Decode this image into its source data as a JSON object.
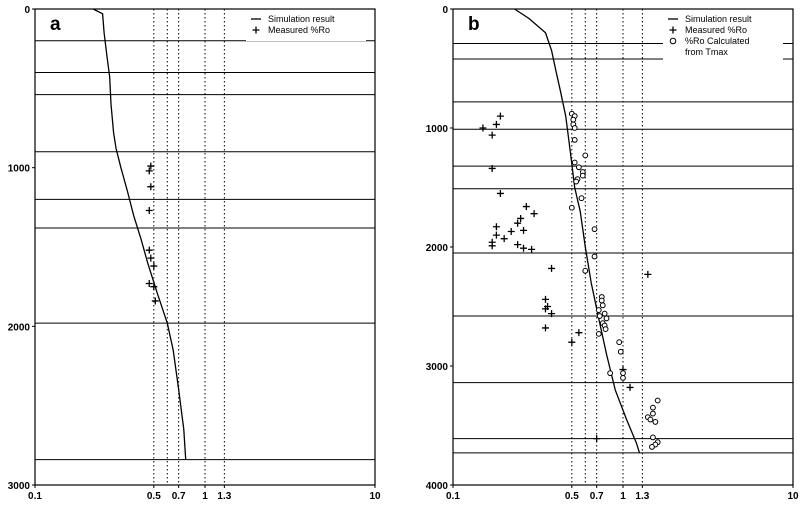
{
  "chart_data": [
    {
      "panel": "a",
      "type": "scatter",
      "xscale": "log",
      "xlim": [
        0.1,
        10
      ],
      "ylim": [
        3000,
        0
      ],
      "x_ticks": [
        "0.1",
        "0.5",
        "0.7",
        "1",
        "1.3",
        "10"
      ],
      "y_ticks": [
        "0",
        "1000",
        "2000",
        "3000"
      ],
      "vlines": [
        0.5,
        0.6,
        0.7,
        1.0,
        1.3
      ],
      "hlines": [
        200,
        400,
        540,
        900,
        1200,
        1380,
        1980,
        2840
      ],
      "legend": {
        "position": "top-right",
        "entries": [
          {
            "symbol": "line",
            "label": "Simulation result"
          },
          {
            "symbol": "plus",
            "label": "Measured %Ro"
          }
        ]
      },
      "series": [
        {
          "name": "Simulation result",
          "kind": "line",
          "points": [
            [
              0.22,
              0
            ],
            [
              0.25,
              30
            ],
            [
              0.255,
              150
            ],
            [
              0.265,
              300
            ],
            [
              0.275,
              430
            ],
            [
              0.28,
              600
            ],
            [
              0.29,
              780
            ],
            [
              0.3,
              880
            ],
            [
              0.32,
              1000
            ],
            [
              0.35,
              1150
            ],
            [
              0.38,
              1300
            ],
            [
              0.42,
              1450
            ],
            [
              0.46,
              1600
            ],
            [
              0.52,
              1780
            ],
            [
              0.6,
              1980
            ],
            [
              0.65,
              2150
            ],
            [
              0.7,
              2400
            ],
            [
              0.75,
              2650
            ],
            [
              0.77,
              2840
            ]
          ]
        },
        {
          "name": "Measured %Ro",
          "kind": "plus",
          "points": [
            [
              0.48,
              990
            ],
            [
              0.47,
              1020
            ],
            [
              0.48,
              1120
            ],
            [
              0.47,
              1270
            ],
            [
              0.47,
              1520
            ],
            [
              0.48,
              1570
            ],
            [
              0.5,
              1620
            ],
            [
              0.47,
              1730
            ],
            [
              0.5,
              1750
            ],
            [
              0.51,
              1840
            ]
          ]
        }
      ]
    },
    {
      "panel": "b",
      "type": "scatter",
      "xscale": "log",
      "xlim": [
        0.1,
        10
      ],
      "ylim": [
        4000,
        0
      ],
      "x_ticks": [
        "0.1",
        "0.5",
        "0.7",
        "1",
        "1.3",
        "10"
      ],
      "y_ticks": [
        "0",
        "1000",
        "2000",
        "3000",
        "4000"
      ],
      "vlines": [
        0.5,
        0.6,
        0.7,
        1.0,
        1.3
      ],
      "hlines": [
        290,
        420,
        780,
        1010,
        1320,
        1510,
        2050,
        2580,
        3140,
        3610,
        3730
      ],
      "legend": {
        "position": "top-right",
        "entries": [
          {
            "symbol": "line",
            "label": "Simulation result"
          },
          {
            "symbol": "plus",
            "label": "Measured %Ro"
          },
          {
            "symbol": "circle",
            "label": "%Ro Calculated"
          },
          {
            "symbol": "none",
            "label": "from Tmax"
          }
        ]
      },
      "series": [
        {
          "name": "Simulation result",
          "kind": "line",
          "points": [
            [
              0.23,
              0
            ],
            [
              0.28,
              80
            ],
            [
              0.35,
              200
            ],
            [
              0.38,
              350
            ],
            [
              0.4,
              500
            ],
            [
              0.43,
              700
            ],
            [
              0.46,
              900
            ],
            [
              0.48,
              1100
            ],
            [
              0.5,
              1300
            ],
            [
              0.52,
              1500
            ],
            [
              0.56,
              1700
            ],
            [
              0.6,
              2000
            ],
            [
              0.65,
              2300
            ],
            [
              0.72,
              2600
            ],
            [
              0.8,
              2900
            ],
            [
              0.9,
              3200
            ],
            [
              1.05,
              3450
            ],
            [
              1.2,
              3650
            ],
            [
              1.25,
              3730
            ]
          ]
        },
        {
          "name": "Measured %Ro",
          "kind": "plus",
          "points": [
            [
              0.19,
              900
            ],
            [
              0.15,
              1000
            ],
            [
              0.18,
              970
            ],
            [
              0.17,
              1060
            ],
            [
              0.17,
              1340
            ],
            [
              0.19,
              1550
            ],
            [
              0.27,
              1660
            ],
            [
              0.3,
              1720
            ],
            [
              0.25,
              1760
            ],
            [
              0.24,
              1800
            ],
            [
              0.26,
              1860
            ],
            [
              0.18,
              1830
            ],
            [
              0.18,
              1900
            ],
            [
              0.22,
              1870
            ],
            [
              0.17,
              1960
            ],
            [
              0.17,
              1990
            ],
            [
              0.2,
              1930
            ],
            [
              0.24,
              1980
            ],
            [
              0.26,
              2010
            ],
            [
              0.29,
              2020
            ],
            [
              0.38,
              2180
            ],
            [
              1.4,
              2230
            ],
            [
              0.35,
              2440
            ],
            [
              0.36,
              2500
            ],
            [
              0.35,
              2520
            ],
            [
              0.38,
              2560
            ],
            [
              0.35,
              2680
            ],
            [
              0.55,
              2720
            ],
            [
              0.5,
              2800
            ],
            [
              1.0,
              3030
            ],
            [
              1.1,
              3180
            ],
            [
              0.7,
              3610
            ]
          ]
        },
        {
          "name": "%Ro Calculated",
          "kind": "circle",
          "points": [
            [
              0.5,
              880
            ],
            [
              0.52,
              900
            ],
            [
              0.51,
              930
            ],
            [
              0.51,
              970
            ],
            [
              0.52,
              1000
            ],
            [
              0.52,
              1100
            ],
            [
              0.6,
              1230
            ],
            [
              0.52,
              1290
            ],
            [
              0.55,
              1330
            ],
            [
              0.58,
              1370
            ],
            [
              0.58,
              1400
            ],
            [
              0.54,
              1430
            ],
            [
              0.53,
              1450
            ],
            [
              0.57,
              1590
            ],
            [
              0.5,
              1670
            ],
            [
              0.68,
              1850
            ],
            [
              0.68,
              2080
            ],
            [
              0.6,
              2200
            ],
            [
              0.75,
              2420
            ],
            [
              0.75,
              2450
            ],
            [
              0.76,
              2490
            ],
            [
              0.72,
              2530
            ],
            [
              0.78,
              2560
            ],
            [
              0.73,
              2580
            ],
            [
              0.8,
              2600
            ],
            [
              0.76,
              2640
            ],
            [
              0.78,
              2660
            ],
            [
              0.79,
              2690
            ],
            [
              0.72,
              2730
            ],
            [
              0.95,
              2800
            ],
            [
              0.97,
              2880
            ],
            [
              0.84,
              3060
            ],
            [
              1.0,
              3060
            ],
            [
              1.0,
              3100
            ],
            [
              1.6,
              3290
            ],
            [
              1.5,
              3350
            ],
            [
              1.5,
              3400
            ],
            [
              1.4,
              3430
            ],
            [
              1.45,
              3450
            ],
            [
              1.55,
              3470
            ],
            [
              1.5,
              3600
            ],
            [
              1.6,
              3640
            ],
            [
              1.55,
              3660
            ],
            [
              1.48,
              3680
            ]
          ]
        }
      ]
    }
  ]
}
